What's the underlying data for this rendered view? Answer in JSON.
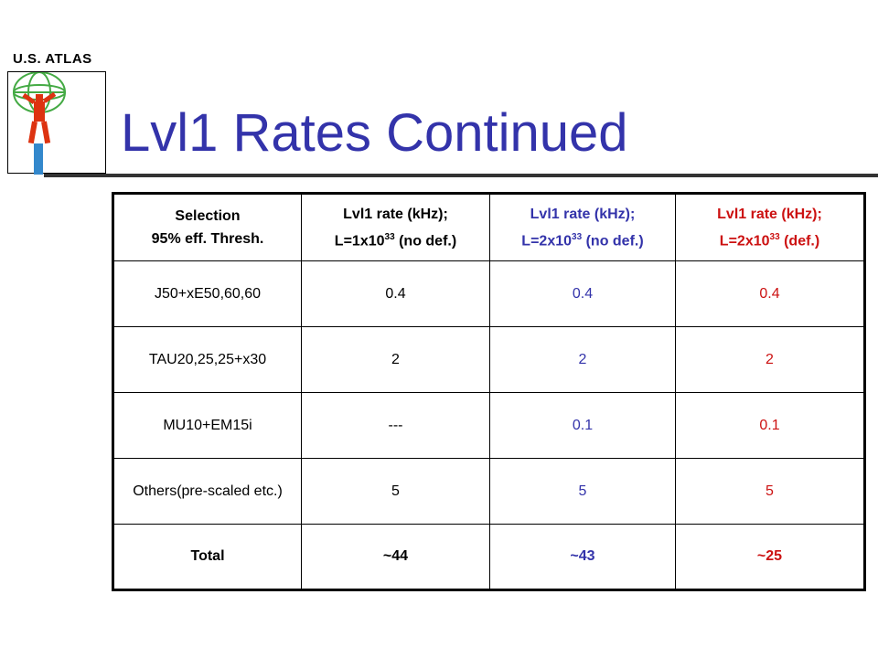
{
  "logo": {
    "text": "U.S. ATLAS",
    "icon": "atlas-figure-globe-icon"
  },
  "slide": {
    "title": "Lvl1 Rates Continued"
  },
  "colors": {
    "title": "#3333aa",
    "blue": "#3333aa",
    "red": "#cc1111"
  },
  "table": {
    "headers": [
      {
        "line1": "Selection",
        "line2": "95% eff. Thresh."
      },
      {
        "line1": "Lvl1 rate (kHz);",
        "line2_pre": "L=1x10",
        "sup": "33",
        "line2_post": " (no def.)"
      },
      {
        "line1": "Lvl1 rate (kHz);",
        "line2_pre": "L=2x10",
        "sup": "33",
        "line2_post": " (no def.)"
      },
      {
        "line1": "Lvl1 rate (kHz);",
        "line2_pre": "L=2x10",
        "sup": "33",
        "line2_post": " (def.)"
      }
    ],
    "rows": [
      [
        "J50+xE50,60,60",
        "0.4",
        "0.4",
        "0.4"
      ],
      [
        "TAU20,25,25+x30",
        "2",
        "2",
        "2"
      ],
      [
        "MU10+EM15i",
        "---",
        "0.1",
        "0.1"
      ],
      [
        "Others(pre-scaled etc.)",
        "5",
        "5",
        "5"
      ],
      [
        "Total",
        "~44",
        "~43",
        "~25"
      ]
    ]
  }
}
